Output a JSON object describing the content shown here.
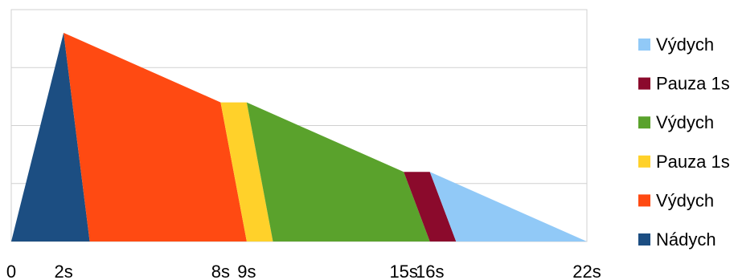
{
  "chart_data": {
    "type": "area",
    "x_ticks": [
      {
        "value": 0,
        "label": "0"
      },
      {
        "value": 2,
        "label": "2s"
      },
      {
        "value": 8,
        "label": "8s"
      },
      {
        "value": 9,
        "label": "9s"
      },
      {
        "value": 15,
        "label": "15s"
      },
      {
        "value": 16,
        "label": "16s"
      },
      {
        "value": 22,
        "label": "22s"
      }
    ],
    "xlim": [
      0,
      22
    ],
    "ylim": [
      0,
      4
    ],
    "grid": "horizontal",
    "legend_position": "right",
    "series": [
      {
        "name": "Nádych",
        "color": "#1c4e82",
        "polygon": [
          [
            0,
            0
          ],
          [
            2,
            3.6
          ],
          [
            3,
            0
          ]
        ]
      },
      {
        "name": "Výdych",
        "color": "#ff4a12",
        "polygon": [
          [
            2,
            3.6
          ],
          [
            8,
            2.4
          ],
          [
            9,
            0
          ],
          [
            3,
            0
          ]
        ]
      },
      {
        "name": "Pauza 1s",
        "color": "#ffd12a",
        "polygon": [
          [
            8,
            2.4
          ],
          [
            9,
            2.4
          ],
          [
            10,
            0
          ],
          [
            9,
            0
          ]
        ]
      },
      {
        "name": "Výdych",
        "color": "#5aa22c",
        "polygon": [
          [
            9,
            2.4
          ],
          [
            15,
            1.2
          ],
          [
            16,
            0
          ],
          [
            10,
            0
          ]
        ]
      },
      {
        "name": "Pauza 1s",
        "color": "#8b0a2c",
        "polygon": [
          [
            15,
            1.2
          ],
          [
            16,
            1.2
          ],
          [
            17,
            0
          ],
          [
            16,
            0
          ]
        ]
      },
      {
        "name": "Výdych",
        "color": "#91c9f7",
        "polygon": [
          [
            16,
            1.2
          ],
          [
            22,
            0
          ],
          [
            17,
            0
          ]
        ]
      }
    ],
    "legend_order": [
      5,
      4,
      3,
      2,
      1,
      0
    ]
  }
}
